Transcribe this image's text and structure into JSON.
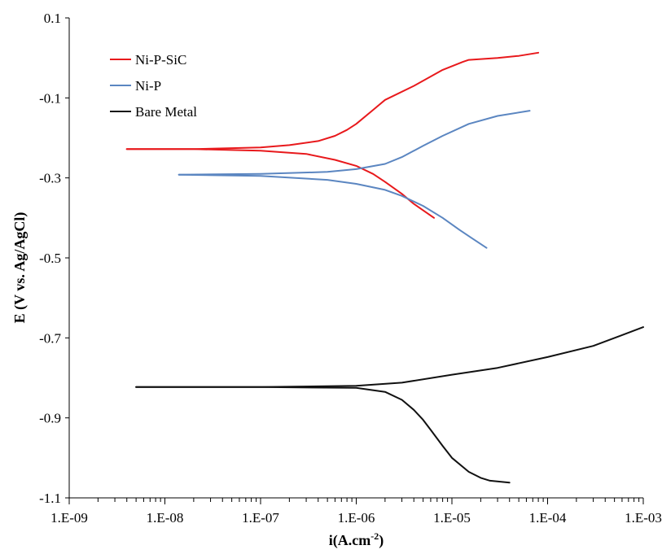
{
  "chart_data": {
    "type": "line",
    "title": "",
    "xlabel": "i(A.cm",
    "xlabel_sup": "-2",
    "xlabel_close": ")",
    "ylabel": "E (V vs. Ag/AgCl)",
    "xscale": "log",
    "xlim": [
      1e-09,
      0.001
    ],
    "ylim": [
      -1.1,
      0.1
    ],
    "xticks": [
      1e-09,
      1e-08,
      1e-07,
      1e-06,
      1e-05,
      0.0001,
      0.001
    ],
    "xtick_labels": [
      "1.E-09",
      "1.E-08",
      "1.E-07",
      "1.E-06",
      "1.E-05",
      "1.E-04",
      "1.E-03"
    ],
    "yticks": [
      0.1,
      -0.1,
      -0.3,
      -0.5,
      -0.7,
      -0.9,
      -1.1
    ],
    "ytick_labels": [
      "0.1",
      "-0.1",
      "-0.3",
      "-0.5",
      "-0.7",
      "-0.9",
      "-1.1"
    ],
    "grid": false,
    "legend_position": "top-left",
    "series": [
      {
        "name": "Ni-P-SiC",
        "color": "#e8191c",
        "branches": [
          {
            "x": [
              4e-09,
              2e-08,
              1e-07,
              2e-07,
              4e-07,
              6e-07,
              8e-07,
              1e-06,
              1.5e-06,
              2e-06,
              4e-06,
              8e-06,
              1.3e-05,
              1.5e-05,
              3e-05,
              5e-05,
              8e-05
            ],
            "y": [
              -0.228,
              -0.228,
              -0.224,
              -0.218,
              -0.208,
              -0.195,
              -0.18,
              -0.165,
              -0.13,
              -0.105,
              -0.07,
              -0.03,
              -0.01,
              -0.005,
              0.0,
              0.005,
              0.013
            ]
          },
          {
            "x": [
              4e-09,
              2e-08,
              1e-07,
              3e-07,
              6e-07,
              1e-06,
              1.5e-06,
              2e-06,
              3e-06,
              4e-06,
              6.5e-06
            ],
            "y": [
              -0.228,
              -0.228,
              -0.232,
              -0.24,
              -0.255,
              -0.27,
              -0.29,
              -0.31,
              -0.34,
              -0.365,
              -0.4
            ]
          }
        ]
      },
      {
        "name": "Ni-P",
        "color": "#5b86c1",
        "branches": [
          {
            "x": [
              1.4e-08,
              1e-07,
              5e-07,
              1e-06,
              2e-06,
              3e-06,
              5e-06,
              8e-06,
              1.5e-05,
              3e-05,
              6.5e-05
            ],
            "y": [
              -0.292,
              -0.29,
              -0.285,
              -0.278,
              -0.265,
              -0.248,
              -0.22,
              -0.195,
              -0.165,
              -0.145,
              -0.132
            ]
          },
          {
            "x": [
              1.4e-08,
              1e-07,
              5e-07,
              1e-06,
              2e-06,
              3e-06,
              5e-06,
              8e-06,
              1.2e-05,
              1.6e-05,
              2.3e-05
            ],
            "y": [
              -0.292,
              -0.295,
              -0.305,
              -0.315,
              -0.33,
              -0.345,
              -0.37,
              -0.4,
              -0.43,
              -0.45,
              -0.475
            ]
          }
        ]
      },
      {
        "name": "Bare Metal",
        "color": "#111111",
        "branches": [
          {
            "x": [
              5e-09,
              1e-07,
              1e-06,
              3e-06,
              1e-05,
              3e-05,
              0.0001,
              0.0003,
              0.001
            ],
            "y": [
              -0.823,
              -0.823,
              -0.82,
              -0.812,
              -0.792,
              -0.775,
              -0.748,
              -0.72,
              -0.673
            ]
          },
          {
            "x": [
              5e-09,
              1e-07,
              1e-06,
              2e-06,
              3e-06,
              4e-06,
              5e-06,
              6e-06,
              8e-06,
              1e-05,
              1.5e-05,
              2e-05,
              2.5e-05,
              4e-05
            ],
            "y": [
              -0.823,
              -0.823,
              -0.825,
              -0.835,
              -0.855,
              -0.88,
              -0.905,
              -0.93,
              -0.97,
              -1.0,
              -1.035,
              -1.05,
              -1.057,
              -1.062
            ]
          }
        ]
      }
    ]
  }
}
